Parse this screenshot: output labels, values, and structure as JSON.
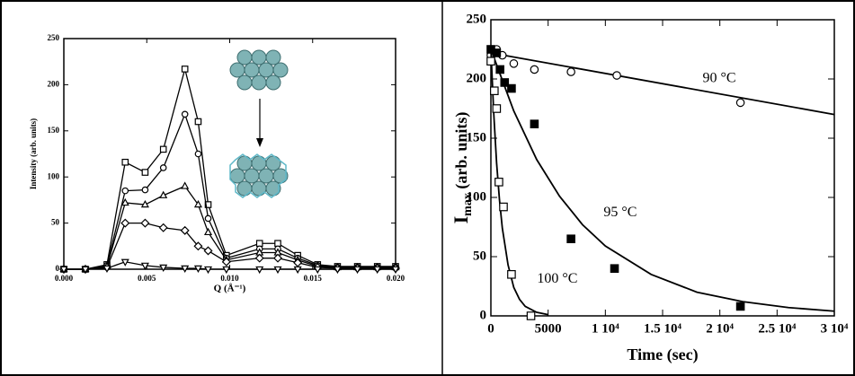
{
  "chart_data": [
    {
      "type": "line",
      "xlabel": "Q (Å⁻¹)",
      "ylabel": "Intensity (arb. units)",
      "x": [
        0,
        0.0013,
        0.0026,
        0.0037,
        0.0049,
        0.006,
        0.0073,
        0.0081,
        0.0087,
        0.0098,
        0.0118,
        0.0129,
        0.0141,
        0.0153,
        0.0165,
        0.0177,
        0.0189,
        0.02
      ],
      "xlim": [
        0,
        0.02
      ],
      "xticks": [
        {
          "value": 0,
          "label": "0.000"
        },
        {
          "value": 0.005,
          "label": "0.005"
        },
        {
          "value": 0.01,
          "label": "0.010"
        },
        {
          "value": 0.015,
          "label": "0.015"
        },
        {
          "value": 0.02,
          "label": "0.020"
        }
      ],
      "ylim": [
        0,
        250
      ],
      "yticks": [
        0,
        50,
        100,
        150,
        200,
        250
      ],
      "series": [
        {
          "marker": "square",
          "color": "#000000",
          "values": [
            0,
            0,
            5,
            116,
            105,
            130,
            217,
            160,
            70,
            15,
            28,
            28,
            15,
            5,
            3,
            3,
            3,
            3
          ]
        },
        {
          "marker": "circle",
          "color": "#000000",
          "values": [
            0,
            0,
            4,
            85,
            86,
            110,
            168,
            125,
            55,
            12,
            22,
            22,
            12,
            4,
            2,
            2,
            2,
            2
          ]
        },
        {
          "marker": "triangle-up",
          "color": "#000000",
          "values": [
            0,
            0,
            3,
            72,
            70,
            80,
            90,
            70,
            40,
            10,
            18,
            18,
            10,
            3,
            2,
            2,
            2,
            2
          ]
        },
        {
          "marker": "diamond",
          "color": "#000000",
          "values": [
            0,
            0,
            2,
            50,
            50,
            45,
            42,
            25,
            20,
            8,
            12,
            12,
            7,
            2,
            1,
            1,
            1,
            1
          ]
        },
        {
          "marker": "triangle-down",
          "color": "#000000",
          "values": [
            0,
            0,
            1,
            8,
            4,
            2,
            1,
            1,
            0,
            0,
            0,
            0,
            0,
            0,
            0,
            0,
            0,
            0
          ]
        }
      ]
    },
    {
      "type": "scatter",
      "xlabel": "Time (sec)",
      "ylabel": {
        "main": "I",
        "sub": "max",
        "rest": " (arb. units)"
      },
      "xlim": [
        0,
        30000
      ],
      "xticks": [
        0,
        5000,
        {
          "value": 10000,
          "label": "1 10⁴"
        },
        {
          "value": 15000,
          "label": "1.5 10⁴"
        },
        {
          "value": 20000,
          "label": "2 10⁴"
        },
        {
          "value": 25000,
          "label": "2.5 10⁴"
        },
        {
          "value": 30000,
          "label": "3 10⁴"
        }
      ],
      "ylim": [
        0,
        250
      ],
      "yticks": [
        0,
        50,
        100,
        150,
        200,
        250
      ],
      "series": [
        {
          "name": "90 °C",
          "marker": "circle",
          "filled": false,
          "color": "#000000",
          "x": [
            0,
            500,
            1000,
            2000,
            3800,
            7000,
            11000,
            21800
          ],
          "values": [
            220,
            225,
            220,
            213,
            208,
            206,
            203,
            180
          ],
          "fit": {
            "x": [
              0,
              30000
            ],
            "values": [
              222,
              170
            ]
          }
        },
        {
          "name": "95 °C",
          "marker": "square",
          "filled": true,
          "color": "#000000",
          "x": [
            0,
            500,
            800,
            1200,
            1800,
            3800,
            7000,
            10800,
            21800
          ],
          "values": [
            225,
            222,
            208,
            197,
            192,
            162,
            65,
            40,
            8
          ],
          "fit": {
            "x": [
              0,
              2000,
              4000,
              6000,
              8000,
              10000,
              14000,
              18000,
              22000,
              26000,
              30000
            ],
            "values": [
              225,
              173,
              132,
              101,
              77,
              59,
              35,
              20,
              12,
              7,
              4
            ]
          }
        },
        {
          "name": "100 °C",
          "marker": "square",
          "filled": false,
          "color": "#000000",
          "x": [
            0,
            300,
            500,
            700,
            1100,
            1800,
            3500
          ],
          "values": [
            215,
            190,
            175,
            113,
            92,
            35,
            0
          ],
          "fit": {
            "x": [
              0,
              250,
              500,
              750,
              1000,
              1500,
              2000,
              2500,
              3000,
              4000,
              5000
            ],
            "values": [
              225,
              171,
              129,
              98,
              74,
              43,
              24,
              14,
              8,
              3,
              1
            ]
          }
        }
      ]
    }
  ]
}
